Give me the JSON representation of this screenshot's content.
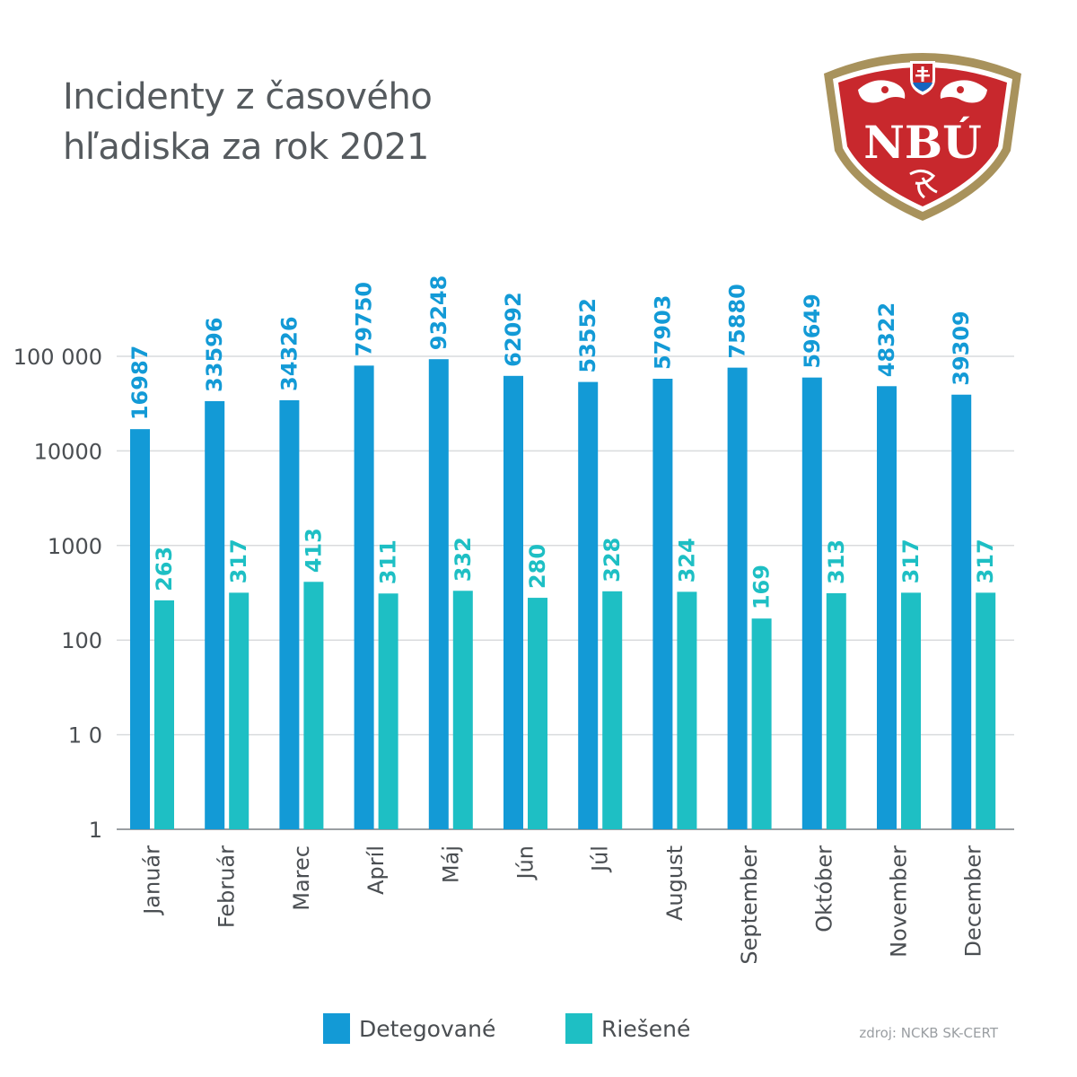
{
  "title_lines": [
    "Incidenty z časového",
    "hľadiska za rok 2021"
  ],
  "logo": {
    "text": "NBÚ",
    "color": "#c8282d",
    "border_color": "#a8925c"
  },
  "colors": {
    "detected": "#139ad6",
    "resolved": "#1ebfc4",
    "grid": "#d9dbdd",
    "axis": "#9a9ea2"
  },
  "chart_data": {
    "type": "bar",
    "title": "Incidenty z časového hľadiska za rok 2021",
    "categories": [
      "Január",
      "Február",
      "Marec",
      "Apríl",
      "Máj",
      "Jún",
      "Júl",
      "August",
      "September",
      "Október",
      "November",
      "December"
    ],
    "series": [
      {
        "name": "Detegované",
        "values": [
          16987,
          33596,
          34326,
          79750,
          93248,
          62092,
          53552,
          57903,
          75880,
          59649,
          48322,
          39309
        ]
      },
      {
        "name": "Riešené",
        "values": [
          263,
          317,
          413,
          311,
          332,
          280,
          328,
          324,
          169,
          313,
          317,
          317
        ]
      }
    ],
    "y_scale": "log",
    "ylim": [
      1,
      100000
    ],
    "y_ticks": [
      1,
      10,
      100,
      1000,
      10000,
      100000
    ],
    "y_tick_labels": [
      "1",
      "1 0",
      "100",
      "1000",
      "10000",
      "100 000"
    ],
    "grid": true,
    "legend_position": "bottom"
  },
  "source": "zdroj: NCKB SK-CERT"
}
